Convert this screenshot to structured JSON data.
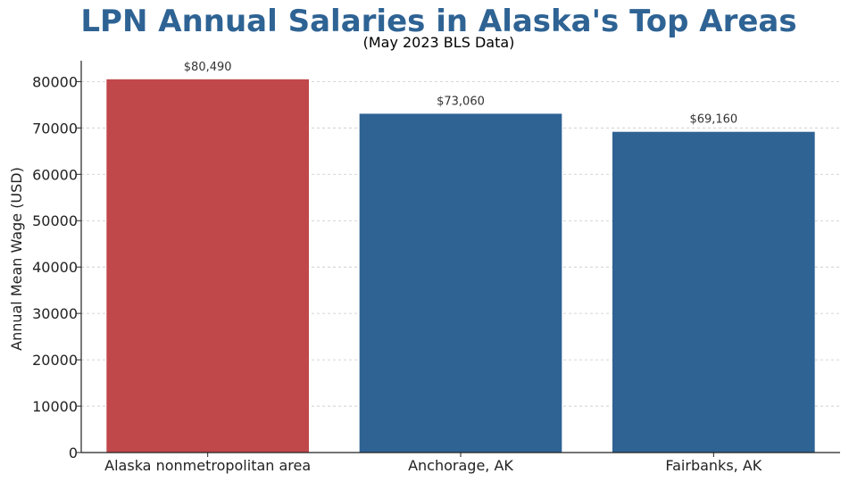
{
  "chart_data": {
    "type": "bar",
    "title": "LPN Annual Salaries in Alaska's Top Areas",
    "subtitle": "(May 2023 BLS Data)",
    "xlabel": "",
    "ylabel": "Annual Mean Wage (USD)",
    "categories": [
      "Alaska nonmetropolitan area",
      "Anchorage, AK",
      "Fairbanks, AK"
    ],
    "values": [
      80490,
      73060,
      69160
    ],
    "data_labels": [
      "$80,490",
      "$73,060",
      "$69,160"
    ],
    "bar_colors": [
      "#c0474a",
      "#2e6394",
      "#2e6394"
    ],
    "ylim": [
      0,
      84500
    ],
    "yticks": [
      0,
      10000,
      20000,
      30000,
      40000,
      50000,
      60000,
      70000,
      80000
    ],
    "grid": "y-dashed",
    "legend": "none"
  }
}
